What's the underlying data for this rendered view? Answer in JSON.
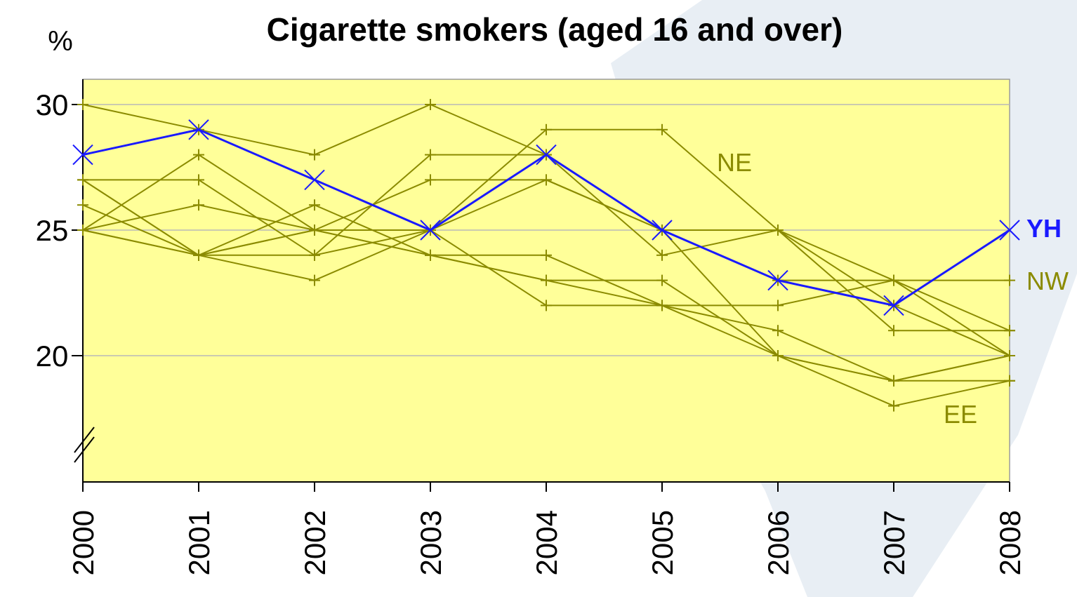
{
  "chart_data": {
    "type": "line",
    "title": "Cigarette smokers (aged 16 and over)",
    "ylabel": "%",
    "xlabel": "",
    "x": [
      "2000",
      "2001",
      "2002",
      "2003",
      "2004",
      "2005",
      "2006",
      "2007",
      "2008"
    ],
    "ylim": [
      15,
      31
    ],
    "yticks": [
      "30",
      "25",
      "20"
    ],
    "y_axis_break": true,
    "grid": "horizontal",
    "colors": {
      "plot_background": "#ffff99",
      "gridline": "#b8b8b8",
      "other_regions": "#8b8b00",
      "highlight": "#1a1aff",
      "decor_shape": "#e8eef4"
    },
    "series": [
      {
        "name": "YH",
        "highlight": true,
        "marker": "x",
        "values": [
          28,
          29,
          27,
          25,
          28,
          25,
          23,
          22,
          25
        ]
      },
      {
        "name": "NE",
        "values": [
          27,
          24,
          24,
          25,
          29,
          29,
          25,
          22,
          20
        ]
      },
      {
        "name": "NW",
        "values": [
          25,
          24,
          25,
          25,
          27,
          25,
          23,
          23,
          23
        ]
      },
      {
        "name": "EE",
        "values": [
          26,
          24,
          23,
          25,
          22,
          22,
          20,
          18,
          19
        ]
      },
      {
        "name": "",
        "values": [
          30,
          29,
          28,
          30,
          28,
          25,
          25,
          23,
          20
        ]
      },
      {
        "name": "",
        "values": [
          27,
          27,
          24,
          28,
          28,
          24,
          25,
          21,
          21
        ]
      },
      {
        "name": "",
        "values": [
          25,
          28,
          25,
          27,
          27,
          25,
          20,
          19,
          20
        ]
      },
      {
        "name": "",
        "values": [
          25,
          26,
          25,
          24,
          23,
          23,
          20,
          19,
          19
        ]
      },
      {
        "name": "",
        "values": [
          27,
          24,
          26,
          24,
          23,
          22,
          22,
          23,
          21
        ]
      },
      {
        "name": "",
        "values": [
          25,
          24,
          25,
          24,
          24,
          22,
          21,
          19,
          20
        ]
      }
    ]
  }
}
